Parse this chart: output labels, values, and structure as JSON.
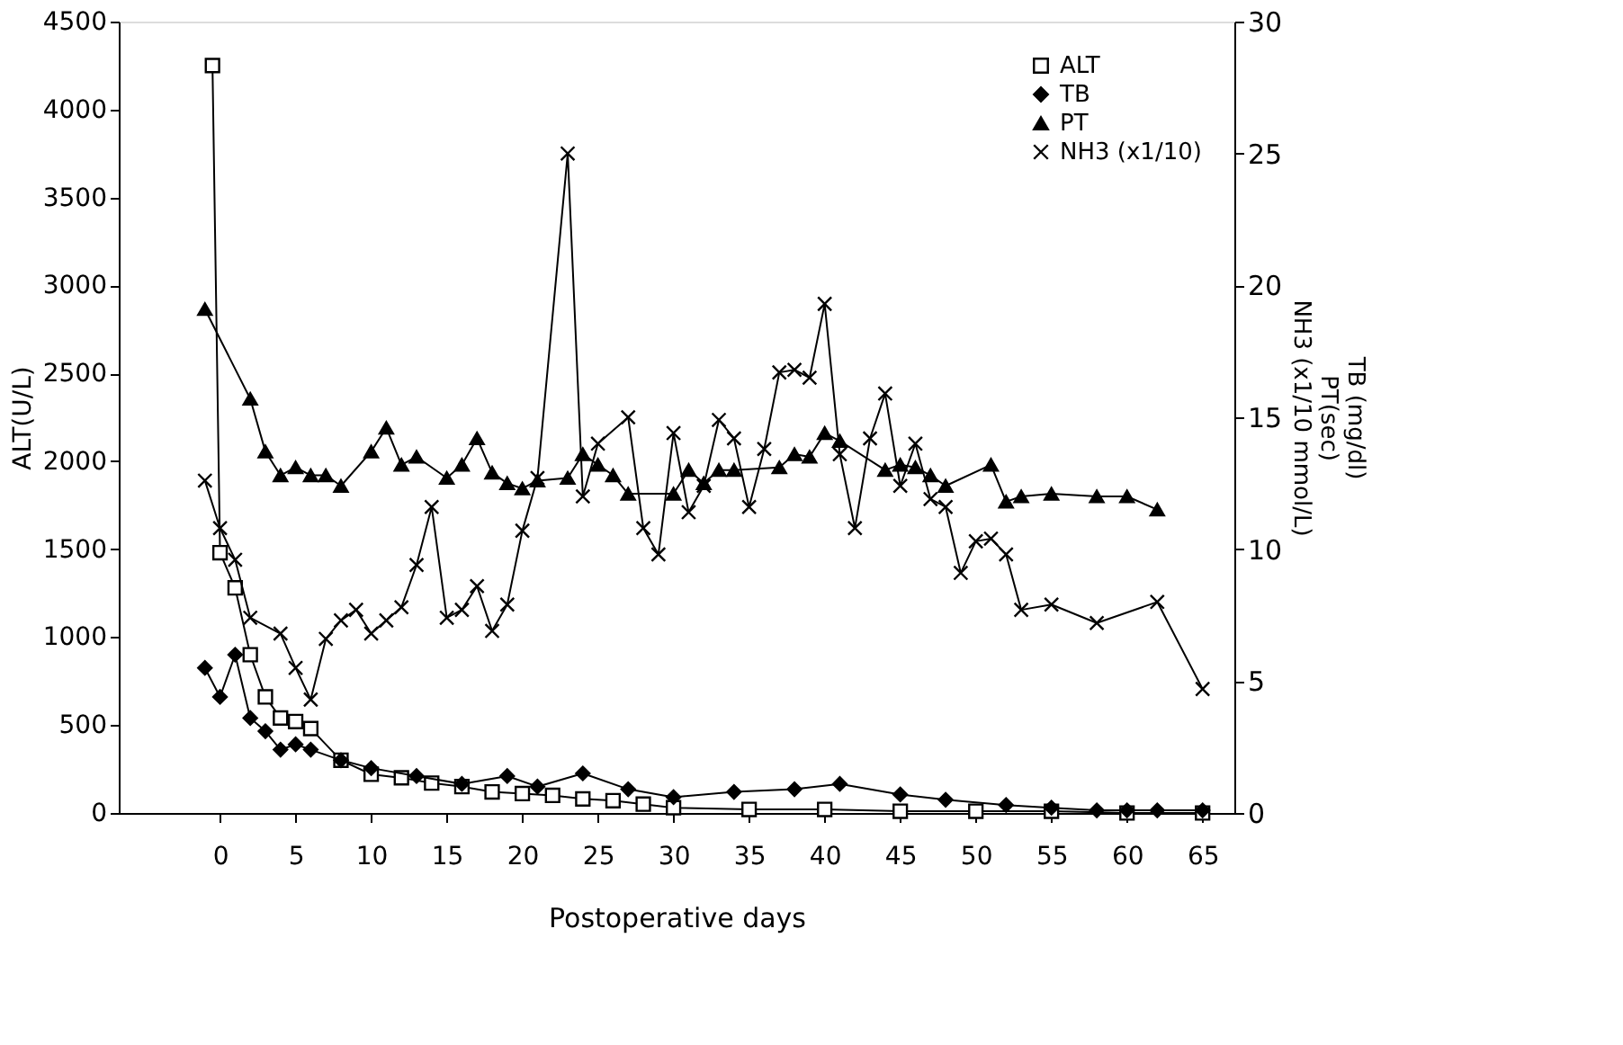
{
  "chart_data": {
    "type": "line",
    "xlabel": "Postoperative days",
    "ylabel": "ALT(U/L)",
    "y2label": "TB (mg/dl)\nPT(sec)\nNH3 (x1/10 mmol/L)",
    "xlim": [
      -6.7,
      67.1
    ],
    "xticks": [
      0,
      5,
      10,
      15,
      20,
      25,
      30,
      35,
      40,
      45,
      50,
      55,
      60,
      65
    ],
    "ylim": [
      0,
      4500
    ],
    "yticks": [
      0,
      500,
      1000,
      1500,
      2000,
      2500,
      3000,
      3500,
      4000,
      4500
    ],
    "y2lim": [
      0,
      30
    ],
    "y2ticks": [
      0,
      5,
      10,
      15,
      20,
      25,
      30
    ],
    "grid": false,
    "legend": "top right",
    "line_style": "solid",
    "series": [
      {
        "name": "ALT",
        "color": "#000000",
        "marker": "square",
        "x": [
          -0.5,
          0,
          1,
          2,
          3,
          4,
          5,
          6,
          8,
          10,
          12,
          14,
          16,
          18,
          20,
          22,
          24,
          26,
          28,
          30,
          35,
          40,
          45,
          50,
          55,
          60,
          65
        ],
        "values": [
          4250,
          1480,
          1280,
          900,
          660,
          540,
          520,
          480,
          300,
          220,
          200,
          170,
          150,
          120,
          110,
          100,
          80,
          70,
          50,
          30,
          20,
          20,
          10,
          10,
          10,
          0,
          0
        ]
      },
      {
        "name": "TB",
        "color": "#000000",
        "marker": "diamond",
        "axis": "y2",
        "x": [
          -1,
          0,
          1,
          2,
          3,
          4,
          5,
          6,
          8,
          10,
          13,
          16,
          19,
          21,
          24,
          27,
          30,
          34,
          38,
          41,
          45,
          48,
          52,
          55,
          58,
          60,
          62,
          65
        ],
        "values": [
          5.5,
          4.4,
          6.0,
          3.6,
          3.1,
          2.4,
          2.6,
          2.4,
          2.0,
          1.7,
          1.4,
          1.1,
          1.4,
          1.0,
          1.5,
          0.9,
          0.6,
          0.8,
          0.9,
          1.1,
          0.7,
          0.5,
          0.3,
          0.2,
          0.1,
          0.1,
          0.1,
          0.1
        ]
      },
      {
        "name": "PT",
        "color": "#000000",
        "marker": "triangle",
        "axis": "y2",
        "x": [
          -1,
          2,
          3,
          4,
          5,
          6,
          7,
          8,
          10,
          11,
          12,
          13,
          15,
          16,
          17,
          18,
          19,
          20,
          21,
          23,
          24,
          25,
          26,
          27,
          30,
          31,
          32,
          33,
          34,
          37,
          38,
          39,
          40,
          41,
          44,
          45,
          46,
          47,
          48,
          51,
          52,
          53,
          55,
          58,
          60,
          62
        ],
        "values": [
          19.1,
          15.7,
          13.7,
          12.8,
          13.1,
          12.8,
          12.8,
          12.4,
          13.7,
          14.6,
          13.2,
          13.5,
          12.7,
          13.2,
          14.2,
          12.9,
          12.5,
          12.3,
          12.6,
          12.7,
          13.6,
          13.2,
          12.8,
          12.1,
          12.1,
          13.0,
          12.5,
          13.0,
          13.0,
          13.1,
          13.6,
          13.5,
          14.4,
          14.1,
          13.0,
          13.2,
          13.1,
          12.8,
          12.4,
          13.2,
          11.8,
          12.0,
          12.1,
          12.0,
          12.0,
          11.5
        ]
      },
      {
        "name": "NH3 (x1/10)",
        "color": "#000000",
        "marker": "cross",
        "axis": "y2",
        "x": [
          -1,
          0,
          1,
          2,
          4,
          5,
          6,
          7,
          8,
          9,
          10,
          11,
          12,
          13,
          14,
          15,
          16,
          17,
          18,
          19,
          20,
          21,
          23,
          24,
          25,
          27,
          28,
          29,
          30,
          31,
          32,
          33,
          34,
          35,
          36,
          37,
          38,
          39,
          40,
          41,
          42,
          43,
          44,
          45,
          46,
          47,
          48,
          49,
          50,
          51,
          52,
          53,
          55,
          58,
          62,
          65
        ],
        "values": [
          12.6,
          10.8,
          9.6,
          7.4,
          6.8,
          5.5,
          4.3,
          6.6,
          7.3,
          7.7,
          6.8,
          7.3,
          7.8,
          9.4,
          11.6,
          7.4,
          7.7,
          8.6,
          6.9,
          7.9,
          10.7,
          12.7,
          25.0,
          12.0,
          14.0,
          15.0,
          10.8,
          9.8,
          14.4,
          11.4,
          12.4,
          14.9,
          14.2,
          11.6,
          13.8,
          16.7,
          16.8,
          16.5,
          19.3,
          13.6,
          10.8,
          14.2,
          15.9,
          12.4,
          14.0,
          11.9,
          11.6,
          9.1,
          10.3,
          10.4,
          9.8,
          7.7,
          7.9,
          7.2,
          8.0,
          4.7
        ]
      }
    ]
  }
}
